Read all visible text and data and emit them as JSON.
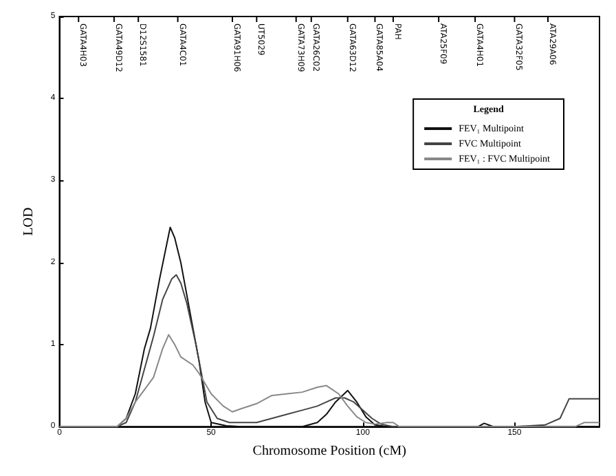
{
  "chart_data": {
    "type": "line",
    "xlabel": "Chromosome Position (cM)",
    "ylabel": "LOD",
    "legend_title": "Legend",
    "legend": "top right",
    "grid": false,
    "marker": "none",
    "xlim": [
      0,
      178
    ],
    "xticks": [
      0,
      50,
      100,
      150
    ],
    "ylim": [
      0,
      5
    ],
    "yticks": [
      0,
      1,
      2,
      3,
      4,
      5
    ],
    "series": [
      {
        "name": "FEV₁ Multipoint",
        "color": "#111111",
        "x": [
          0,
          10,
          19,
          22,
          25,
          28,
          30,
          33,
          36.5,
          38,
          40,
          42,
          44,
          46,
          48,
          50,
          55,
          60,
          70,
          80,
          85,
          88,
          91,
          95,
          98,
          101,
          104,
          108,
          112,
          120,
          130,
          138,
          140,
          143,
          150,
          160,
          165,
          170,
          178
        ],
        "values": [
          0,
          0,
          0,
          0.1,
          0.4,
          0.95,
          1.2,
          1.8,
          2.43,
          2.3,
          2.0,
          1.6,
          1.2,
          0.8,
          0.3,
          0.05,
          0.01,
          0,
          0,
          0,
          0.05,
          0.15,
          0.3,
          0.44,
          0.3,
          0.12,
          0.02,
          0,
          0,
          0,
          0,
          0,
          0.04,
          0,
          0,
          0,
          0,
          0,
          0
        ]
      },
      {
        "name": "FVC Multipoint",
        "color": "#444444",
        "x": [
          0,
          10,
          19,
          22,
          25,
          28,
          31,
          34,
          37,
          38.5,
          40,
          42,
          45,
          48.6,
          52,
          56,
          60,
          65,
          70,
          75,
          80,
          85,
          88,
          91,
          94,
          97,
          100,
          103,
          106,
          110,
          120,
          130,
          150,
          160,
          165,
          168,
          172,
          178
        ],
        "values": [
          0,
          0,
          0,
          0.05,
          0.3,
          0.7,
          1.1,
          1.55,
          1.8,
          1.85,
          1.75,
          1.5,
          1.0,
          0.3,
          0.1,
          0.05,
          0.05,
          0.05,
          0.1,
          0.15,
          0.2,
          0.25,
          0.3,
          0.35,
          0.35,
          0.3,
          0.2,
          0.1,
          0.03,
          0,
          0,
          0,
          0,
          0.02,
          0.1,
          0.34,
          0.34,
          0.34
        ]
      },
      {
        "name": "FEV₁ : FVC Multipoint",
        "color": "#888888",
        "x": [
          0,
          10,
          19,
          22,
          25,
          28,
          31,
          34,
          36,
          38,
          40,
          44,
          46,
          50,
          54,
          57,
          60,
          65,
          70,
          75,
          80,
          85,
          88,
          92,
          95,
          98,
          101,
          104,
          108,
          110,
          112,
          120,
          140,
          160,
          170,
          173,
          178
        ],
        "values": [
          0,
          0,
          0,
          0.1,
          0.3,
          0.45,
          0.6,
          0.95,
          1.12,
          1.0,
          0.85,
          0.75,
          0.65,
          0.4,
          0.25,
          0.18,
          0.22,
          0.28,
          0.38,
          0.4,
          0.42,
          0.48,
          0.5,
          0.4,
          0.25,
          0.12,
          0.05,
          0.03,
          0.05,
          0.05,
          0,
          0,
          0,
          0,
          0,
          0.05,
          0.05
        ]
      }
    ],
    "ref_lines": [
      {
        "axis": "x",
        "value": 6.3,
        "label": "GATA4H03"
      },
      {
        "axis": "x",
        "value": 18,
        "label": "GATA49D12"
      },
      {
        "axis": "x",
        "value": 26,
        "label": "D12S1581"
      },
      {
        "axis": "x",
        "value": 39,
        "label": "GATA4C01"
      },
      {
        "axis": "x",
        "value": 57,
        "label": "GATA91H06"
      },
      {
        "axis": "x",
        "value": 65,
        "label": "UT5029"
      },
      {
        "axis": "x",
        "value": 78,
        "label": "GATA73H09"
      },
      {
        "axis": "x",
        "value": 83,
        "label": "GATA26C02"
      },
      {
        "axis": "x",
        "value": 95,
        "label": "GATA63D12"
      },
      {
        "axis": "x",
        "value": 104,
        "label": "GATA85A04"
      },
      {
        "axis": "x",
        "value": 110,
        "label": "PAH"
      },
      {
        "axis": "x",
        "value": 125,
        "label": "ATA25F09"
      },
      {
        "axis": "x",
        "value": 137,
        "label": "GATA4H01"
      },
      {
        "axis": "x",
        "value": 150,
        "label": "GATA32F05"
      },
      {
        "axis": "x",
        "value": 161,
        "label": "ATA29A06"
      }
    ]
  }
}
